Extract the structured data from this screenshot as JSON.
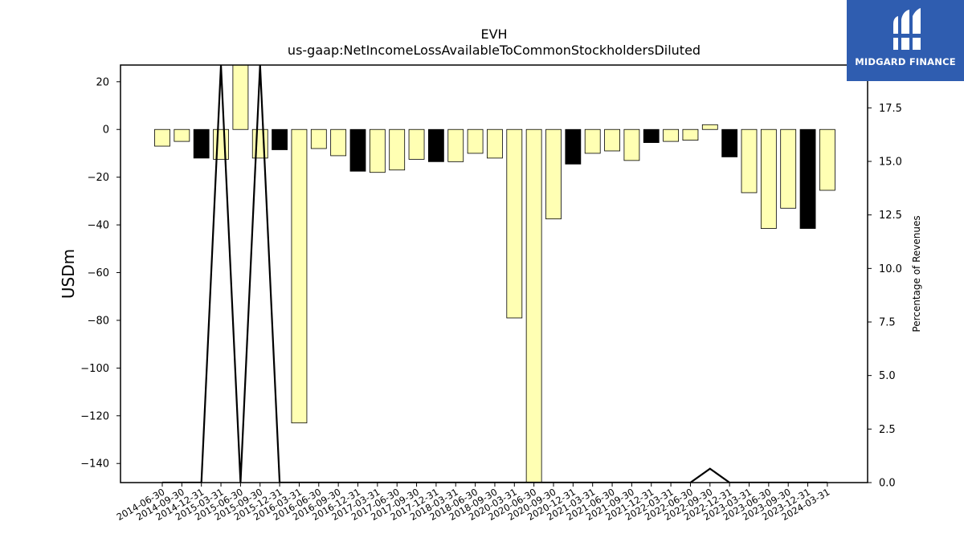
{
  "brand": {
    "name": "MIDGARD FINANCE",
    "bg_color": "#2f5db0",
    "icon": "midgard-logo-icon"
  },
  "chart_data": {
    "type": "bar",
    "title": "EVH",
    "subtitle": "us-gaap:NetIncomeLossAvailableToCommonStockholdersDiluted",
    "ylabel": "USDm",
    "ylabel_right": "Percentage of Revenues",
    "ylim": [
      -148,
      27
    ],
    "ylim_right": [
      0,
      19.5
    ],
    "yticks": [
      20,
      0,
      -20,
      -40,
      -60,
      -80,
      -100,
      -120,
      -140
    ],
    "yticks_right": [
      "0.0",
      "2.5",
      "5.0",
      "7.5",
      "10.0",
      "12.5",
      "15.0",
      "17.5"
    ],
    "colors": {
      "positive_fill": "#ffffb3",
      "negative_fill": "#000000",
      "edge": "#000000"
    },
    "categories": [
      "2014-06-30",
      "2014-09-30",
      "2014-12-31",
      "2015-03-31",
      "2015-06-30",
      "2015-09-30",
      "2015-12-31",
      "2016-03-31",
      "2016-06-30",
      "2016-09-30",
      "2016-12-31",
      "2017-03-31",
      "2017-06-30",
      "2017-09-30",
      "2017-12-31",
      "2018-03-31",
      "2018-06-30",
      "2018-09-30",
      "2020-03-31",
      "2020-06-30",
      "2020-09-30",
      "2020-12-31",
      "2021-03-31",
      "2021-06-30",
      "2021-09-30",
      "2021-12-31",
      "2022-03-31",
      "2022-06-30",
      "2022-09-30",
      "2022-12-31",
      "2023-03-31",
      "2023-06-30",
      "2023-09-30",
      "2023-12-31",
      "2024-03-31"
    ],
    "values": [
      -7,
      -5,
      -12,
      -12.5,
      27,
      -12,
      -8.5,
      -123,
      -8,
      -11,
      -17.5,
      -18,
      -17,
      -12.5,
      -13.5,
      -13.5,
      -10,
      -12,
      -79,
      -148,
      -37.5,
      -14.5,
      -10,
      -9,
      -13,
      -5.5,
      -5,
      -4.5,
      2,
      -11.5,
      -26.5,
      -41.5,
      -33,
      -41.5,
      -25.5
    ],
    "bar_style": [
      "light",
      "light",
      "dark",
      "light",
      "light",
      "light",
      "dark",
      "light",
      "light",
      "light",
      "dark",
      "light",
      "light",
      "light",
      "dark",
      "light",
      "light",
      "light",
      "light",
      "light",
      "light",
      "dark",
      "light",
      "light",
      "light",
      "dark",
      "light",
      "light",
      "light",
      "dark",
      "light",
      "light",
      "light",
      "dark",
      "light"
    ],
    "percentage_of_revenues": {
      "categories": [
        "2014-06-30",
        "2014-09-30",
        "2014-12-31",
        "2015-03-31",
        "2015-06-30",
        "2015-09-30",
        "2015-12-31",
        "2016-03-31",
        "2016-06-30",
        "2016-09-30",
        "2016-12-31",
        "2017-03-31",
        "2017-06-30",
        "2017-09-30",
        "2017-12-31",
        "2018-03-31",
        "2018-06-30",
        "2018-09-30",
        "2020-03-31",
        "2020-06-30",
        "2020-09-30",
        "2020-12-31",
        "2021-03-31",
        "2021-06-30",
        "2021-09-30",
        "2021-12-31",
        "2022-03-31",
        "2022-06-30",
        "2022-09-30",
        "2022-12-31",
        "2023-03-31",
        "2023-06-30",
        "2023-09-30",
        "2023-12-31",
        "2024-03-31"
      ],
      "values": [
        0,
        0,
        0,
        19.5,
        0,
        19.5,
        0,
        0,
        0,
        0,
        0,
        0,
        0,
        0,
        0,
        0,
        0,
        0,
        0,
        0,
        0,
        0,
        0,
        0,
        0,
        0,
        0,
        0,
        0.65,
        0,
        0,
        0,
        0,
        0,
        0
      ]
    },
    "grid": false,
    "legend": "none"
  }
}
